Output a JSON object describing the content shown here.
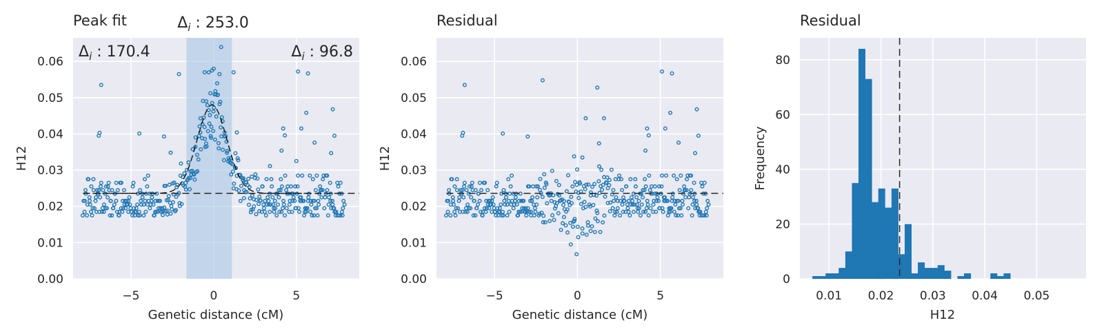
{
  "chart_data": [
    {
      "type": "scatter",
      "title": "Peak fit",
      "xlabel": "Genetic distance (cM)",
      "ylabel": "H12",
      "xlim": [
        -8.5,
        8.8
      ],
      "ylim": [
        0,
        0.0665
      ],
      "xticks": [
        -5,
        0,
        5
      ],
      "xtick_labels": [
        "−5",
        "0",
        "5"
      ],
      "yticks": [
        0,
        0.01,
        0.02,
        0.03,
        0.04,
        0.05,
        0.06
      ],
      "ytick_labels": [
        "0.00",
        "0.01",
        "0.02",
        "0.03",
        "0.04",
        "0.05",
        "0.06"
      ],
      "grid": true,
      "baseline": 0.0236,
      "peak": {
        "center": -0.1,
        "amplitude": 0.0244,
        "sigma": 0.9
      },
      "shaded_region": [
        -1.65,
        1.1
      ],
      "annotations": {
        "left": "170.4",
        "right": "96.8",
        "center": "253.0"
      },
      "outliers": [
        {
          "x": -6.8,
          "y": 0.0535
        },
        {
          "x": -6.9,
          "y": 0.0403
        },
        {
          "x": -6.95,
          "y": 0.0395
        },
        {
          "x": -2.1,
          "y": 0.0565
        },
        {
          "x": -4.5,
          "y": 0.0401
        },
        {
          "x": -3.0,
          "y": 0.0393
        },
        {
          "x": -0.55,
          "y": 0.057
        },
        {
          "x": -0.3,
          "y": 0.057
        },
        {
          "x": -0.1,
          "y": 0.0575
        },
        {
          "x": 0.0,
          "y": 0.058
        },
        {
          "x": 0.45,
          "y": 0.064
        },
        {
          "x": 0.35,
          "y": 0.0565
        },
        {
          "x": 1.2,
          "y": 0.057
        },
        {
          "x": -0.2,
          "y": 0.0512
        },
        {
          "x": 0.1,
          "y": 0.0518
        },
        {
          "x": 0.25,
          "y": 0.0508
        },
        {
          "x": -0.45,
          "y": 0.049
        },
        {
          "x": 5.1,
          "y": 0.0572
        },
        {
          "x": 5.7,
          "y": 0.0567
        },
        {
          "x": 5.6,
          "y": 0.0458
        },
        {
          "x": 5.3,
          "y": 0.0415
        },
        {
          "x": 6.1,
          "y": 0.0376
        },
        {
          "x": 4.2,
          "y": 0.0415
        },
        {
          "x": 4.3,
          "y": 0.0396
        },
        {
          "x": 4.1,
          "y": 0.0354
        },
        {
          "x": 7.2,
          "y": 0.0468
        },
        {
          "x": 7.3,
          "y": 0.0395
        },
        {
          "x": 7.1,
          "y": 0.0347
        },
        {
          "x": 1.4,
          "y": 0.0404
        },
        {
          "x": -2.6,
          "y": 0.0348
        },
        {
          "x": 5.0,
          "y": 0.0325
        },
        {
          "x": 3.4,
          "y": 0.0311
        }
      ]
    },
    {
      "type": "scatter",
      "title": "Residual",
      "xlabel": "Genetic distance (cM)",
      "ylabel": "H12",
      "xlim": [
        -8.5,
        8.8
      ],
      "ylim": [
        0,
        0.0665
      ],
      "xticks": [
        -5,
        0,
        5
      ],
      "xtick_labels": [
        "−5",
        "0",
        "5"
      ],
      "yticks": [
        0,
        0.01,
        0.02,
        0.03,
        0.04,
        0.05,
        0.06
      ],
      "ytick_labels": [
        "0.00",
        "0.01",
        "0.02",
        "0.03",
        "0.04",
        "0.05",
        "0.06"
      ],
      "grid": true,
      "baseline": 0.0236,
      "outliers": [
        {
          "x": -6.8,
          "y": 0.0535
        },
        {
          "x": -6.9,
          "y": 0.0403
        },
        {
          "x": -6.95,
          "y": 0.0395
        },
        {
          "x": -2.1,
          "y": 0.0548
        },
        {
          "x": 1.2,
          "y": 0.0528
        },
        {
          "x": -4.5,
          "y": 0.0401
        },
        {
          "x": -3.0,
          "y": 0.0393
        },
        {
          "x": 5.1,
          "y": 0.0572
        },
        {
          "x": 5.7,
          "y": 0.0567
        },
        {
          "x": 5.6,
          "y": 0.0458
        },
        {
          "x": 5.3,
          "y": 0.0415
        },
        {
          "x": 6.1,
          "y": 0.0376
        },
        {
          "x": 4.2,
          "y": 0.0415
        },
        {
          "x": 4.3,
          "y": 0.0396
        },
        {
          "x": 4.1,
          "y": 0.0354
        },
        {
          "x": 7.2,
          "y": 0.0468
        },
        {
          "x": 7.3,
          "y": 0.0395
        },
        {
          "x": 7.1,
          "y": 0.0347
        },
        {
          "x": 1.6,
          "y": 0.0443
        },
        {
          "x": 0.5,
          "y": 0.0443
        },
        {
          "x": 1.3,
          "y": 0.0374
        },
        {
          "x": -0.4,
          "y": 0.0095
        },
        {
          "x": -0.05,
          "y": 0.0068
        },
        {
          "x": 0.05,
          "y": 0.0115
        },
        {
          "x": -0.6,
          "y": 0.0128
        },
        {
          "x": 0.8,
          "y": 0.0132
        },
        {
          "x": 0.3,
          "y": 0.0335
        },
        {
          "x": -0.2,
          "y": 0.0338
        }
      ]
    },
    {
      "type": "bar",
      "title": "Residual",
      "xlabel": "H12",
      "ylabel": "Frequency",
      "xlim": [
        0.0044,
        0.0595
      ],
      "ylim": [
        0,
        88
      ],
      "xticks": [
        0.01,
        0.02,
        0.03,
        0.04,
        0.05
      ],
      "xtick_labels": [
        "0.01",
        "0.02",
        "0.03",
        "0.04",
        "0.05"
      ],
      "yticks": [
        0,
        20,
        40,
        60,
        80
      ],
      "ytick_labels": [
        "0",
        "20",
        "40",
        "60",
        "80"
      ],
      "grid": true,
      "vline": 0.0236,
      "bin_start": 0.0068,
      "bin_width": 0.00127,
      "values": [
        1,
        1,
        2,
        2,
        4,
        10,
        35,
        84,
        73,
        28,
        33,
        26,
        33,
        9,
        20,
        2,
        6,
        4,
        4,
        5,
        3,
        0,
        1,
        2,
        0,
        0,
        0,
        2,
        1,
        2
      ]
    }
  ]
}
